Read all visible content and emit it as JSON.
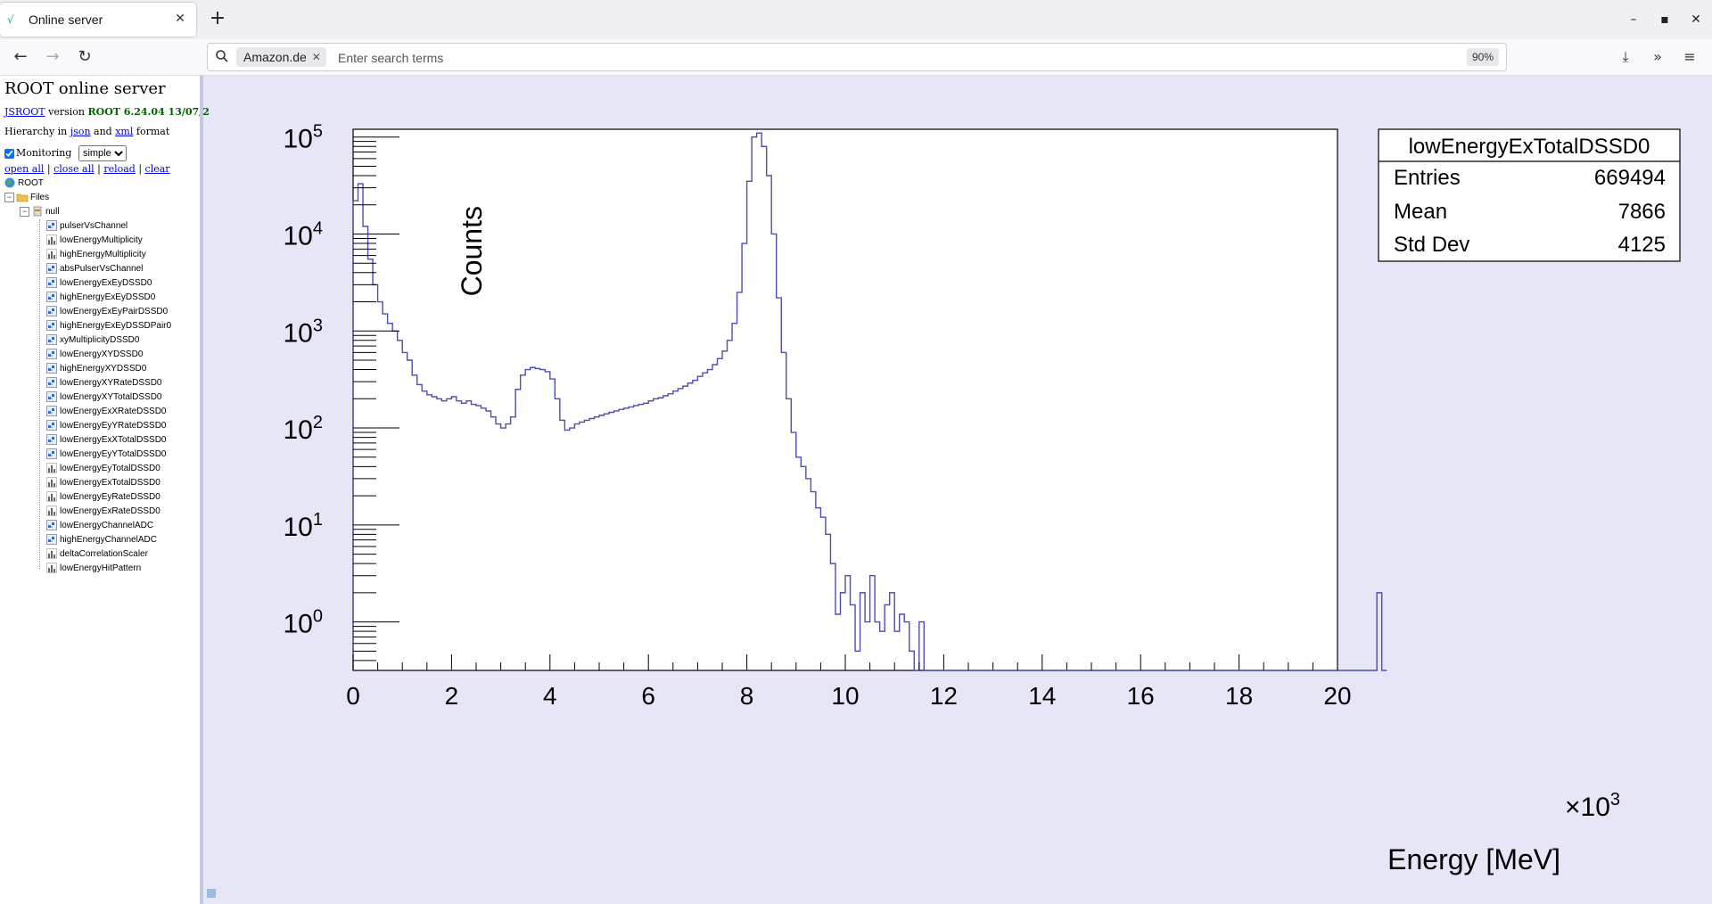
{
  "browser": {
    "tab_title": "Online server",
    "search_engine": "Amazon.de",
    "search_placeholder": "Enter search terms",
    "zoom": "90%"
  },
  "panel": {
    "title": "ROOT online server",
    "jsroot_link": "JSROOT",
    "version_word": "version",
    "version_value": "ROOT 6.24.04 13/07/2",
    "hier_prefix": "Hierarchy in",
    "json_link": "json",
    "and_word": "and",
    "xml_link": "xml",
    "format_word": "format",
    "monitoring_label": "Monitoring",
    "monitoring_checked": true,
    "monitoring_mode": "simple",
    "links": [
      "open all",
      "close all",
      "reload",
      "clear"
    ]
  },
  "tree": {
    "root": "ROOT",
    "files": "Files",
    "null": "null",
    "items": [
      {
        "name": "pulserVsChannel",
        "kind": "2d"
      },
      {
        "name": "lowEnergyMultiplicity",
        "kind": "1d"
      },
      {
        "name": "highEnergyMultiplicity",
        "kind": "1d"
      },
      {
        "name": "absPulserVsChannel",
        "kind": "2d"
      },
      {
        "name": "lowEnergyExEyDSSD0",
        "kind": "2d"
      },
      {
        "name": "highEnergyExEyDSSD0",
        "kind": "2d"
      },
      {
        "name": "lowEnergyExEyPairDSSD0",
        "kind": "2d"
      },
      {
        "name": "highEnergyExEyDSSDPair0",
        "kind": "2d"
      },
      {
        "name": "xyMultiplicityDSSD0",
        "kind": "2d"
      },
      {
        "name": "lowEnergyXYDSSD0",
        "kind": "2d"
      },
      {
        "name": "highEnergyXYDSSD0",
        "kind": "2d"
      },
      {
        "name": "lowEnergyXYRateDSSD0",
        "kind": "2d"
      },
      {
        "name": "lowEnergyXYTotalDSSD0",
        "kind": "2d"
      },
      {
        "name": "lowEnergyExXRateDSSD0",
        "kind": "2d"
      },
      {
        "name": "lowEnergyEyYRateDSSD0",
        "kind": "2d"
      },
      {
        "name": "lowEnergyExXTotalDSSD0",
        "kind": "2d"
      },
      {
        "name": "lowEnergyEyYTotalDSSD0",
        "kind": "2d"
      },
      {
        "name": "lowEnergyEyTotalDSSD0",
        "kind": "1d"
      },
      {
        "name": "lowEnergyExTotalDSSD0",
        "kind": "1d"
      },
      {
        "name": "lowEnergyEyRateDSSD0",
        "kind": "1d"
      },
      {
        "name": "lowEnergyExRateDSSD0",
        "kind": "1d"
      },
      {
        "name": "lowEnergyChannelADC",
        "kind": "2d"
      },
      {
        "name": "highEnergyChannelADC",
        "kind": "2d"
      },
      {
        "name": "deltaCorrelationScaler",
        "kind": "1d"
      },
      {
        "name": "lowEnergyHitPattern",
        "kind": "1d"
      }
    ]
  },
  "stats": {
    "title": "lowEnergyExTotalDSSD0",
    "rows": [
      {
        "label": "Entries",
        "value": "669494"
      },
      {
        "label": "Mean",
        "value": "7866"
      },
      {
        "label": "Std Dev",
        "value": "4125"
      }
    ]
  },
  "chart_data": {
    "type": "line",
    "title": "",
    "xlabel": "Energy [MeV]",
    "ylabel": "Counts",
    "x_multiplier": "×10",
    "x_multiplier_exp": "3",
    "xlim": [
      0,
      20
    ],
    "ylim_log10": [
      -0.5,
      5.08
    ],
    "log_y": true,
    "x_ticks": [
      "0",
      "2",
      "4",
      "6",
      "8",
      "10",
      "12",
      "14",
      "16",
      "18",
      "20"
    ],
    "y_ticks": [
      {
        "base": "10",
        "exp": "0"
      },
      {
        "base": "10",
        "exp": "1"
      },
      {
        "base": "10",
        "exp": "2"
      },
      {
        "base": "10",
        "exp": "3"
      },
      {
        "base": "10",
        "exp": "4"
      },
      {
        "base": "10",
        "exp": "5"
      }
    ],
    "line_color": "#4d4db3",
    "bin_width": 0.1,
    "series": [
      {
        "values": [
          22000,
          33000,
          12000,
          5500,
          3000,
          2000,
          1500,
          1200,
          1000,
          800,
          600,
          500,
          350,
          280,
          240,
          220,
          210,
          200,
          190,
          200,
          210,
          190,
          180,
          190,
          175,
          170,
          160,
          150,
          130,
          110,
          100,
          110,
          130,
          250,
          350,
          400,
          420,
          410,
          400,
          380,
          320,
          200,
          120,
          95,
          100,
          110,
          115,
          120,
          125,
          130,
          135,
          140,
          145,
          150,
          155,
          160,
          165,
          170,
          175,
          180,
          190,
          200,
          205,
          215,
          225,
          240,
          255,
          270,
          290,
          310,
          340,
          370,
          400,
          450,
          520,
          620,
          800,
          1200,
          2500,
          8000,
          35000,
          100000,
          110000,
          80000,
          40000,
          10000,
          2200,
          600,
          200,
          90,
          50,
          40,
          30,
          22,
          15,
          12,
          8,
          4,
          1.2,
          2,
          3,
          1.5,
          0.5,
          2,
          1,
          3,
          1,
          0.8,
          1.5,
          2,
          0.8,
          1.2,
          1,
          0.5,
          0.3,
          1,
          0.2,
          0.2,
          0.2,
          0.2,
          0.3,
          0.2,
          0.2,
          0.2,
          0.2,
          0.2,
          0.2,
          0.2,
          0.2,
          0.3,
          0.2,
          0.2,
          0.2,
          0.2,
          0.2,
          0.2,
          0.2,
          0.2,
          0.2,
          0.2,
          0.2,
          0.2,
          0.2,
          0.2,
          0.2,
          0.2,
          0.2,
          0.2,
          0.2,
          0.2,
          0.2,
          0.2,
          0.2,
          0.2,
          0.2,
          0.2,
          0.2,
          0.2,
          0.2,
          0.2,
          0.2,
          0.2,
          0.2,
          0.2,
          0.2,
          0.2,
          0.2,
          0.2,
          0.2,
          0.2,
          0.2,
          0.2,
          0.2,
          0.2,
          0.2,
          0.2,
          0.2,
          0.2,
          0.2,
          0.2,
          0.2,
          0.2,
          0.2,
          0.2,
          0.2,
          0.2,
          0.2,
          0.2,
          0.2,
          0.2,
          0.2,
          0.2,
          0.2,
          0.2,
          0.2,
          0.2,
          0.2,
          0.2,
          0.2,
          0.2,
          0.2,
          0.2,
          0.2,
          0.2,
          0.2,
          0.2,
          0.2,
          0.2,
          2,
          0.2
        ]
      }
    ]
  }
}
